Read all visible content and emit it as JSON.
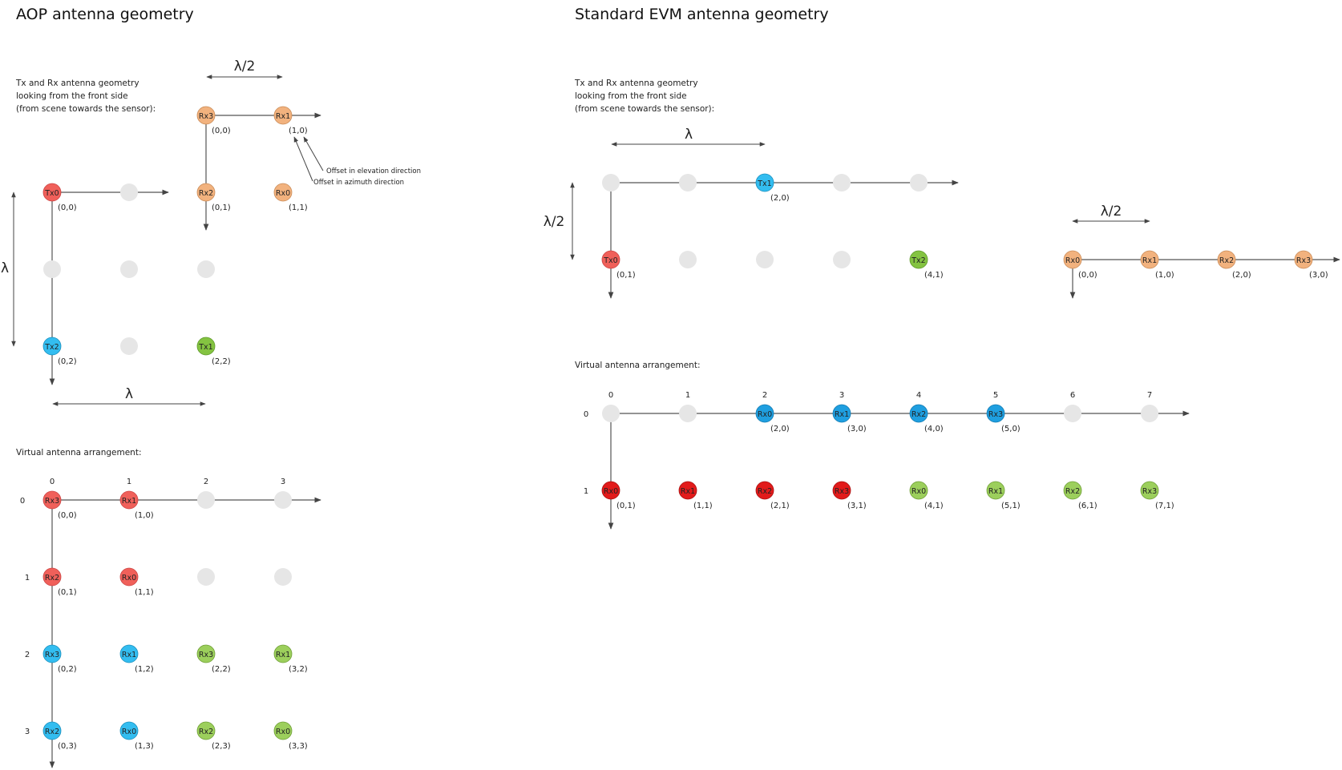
{
  "colors": {
    "tx_red": "#f0605a",
    "tx_blue": "#33bdf0",
    "tx_green": "#84c341",
    "rx_orange": "#f2b27e",
    "red_dark": "#e21b1b",
    "blue_dark": "#1f9fe0",
    "green_light": "#9ccf5c",
    "empty": "#e6e6e6",
    "line": "#555555"
  },
  "aop": {
    "title": "AOP antenna geometry",
    "note": [
      "Tx and Rx antenna geometry",
      "looking from the front side",
      "(from scene towards the sensor):"
    ],
    "lambda": "λ",
    "lambda_half": "λ/2",
    "offset_elev": "Offset in elevation direction",
    "offset_azim": "Offset in azimuth direction",
    "tx": [
      {
        "label": "Tx0",
        "coord": "(0,0)"
      },
      {
        "label": "Tx2",
        "coord": "(0,2)"
      },
      {
        "label": "Tx1",
        "coord": "(2,2)"
      }
    ],
    "rx": [
      {
        "label": "Rx3",
        "coord": "(0,0)"
      },
      {
        "label": "Rx1",
        "coord": "(1,0)"
      },
      {
        "label": "Rx2",
        "coord": "(0,1)"
      },
      {
        "label": "Rx0",
        "coord": "(1,1)"
      }
    ],
    "virtual_title": "Virtual antenna arrangement:",
    "col_idx": [
      "0",
      "1",
      "2",
      "3"
    ],
    "row_idx": [
      "0",
      "1",
      "2",
      "3"
    ],
    "virtual": [
      {
        "label": "Rx3",
        "coord": "(0,0)"
      },
      {
        "label": "Rx1",
        "coord": "(1,0)"
      },
      {
        "label": "Rx2",
        "coord": "(0,1)"
      },
      {
        "label": "Rx0",
        "coord": "(1,1)"
      },
      {
        "label": "Rx3",
        "coord": "(0,2)"
      },
      {
        "label": "Rx1",
        "coord": "(1,2)"
      },
      {
        "label": "Rx3",
        "coord": "(2,2)"
      },
      {
        "label": "Rx1",
        "coord": "(3,2)"
      },
      {
        "label": "Rx2",
        "coord": "(0,3)"
      },
      {
        "label": "Rx0",
        "coord": "(1,3)"
      },
      {
        "label": "Rx2",
        "coord": "(2,3)"
      },
      {
        "label": "Rx0",
        "coord": "(3,3)"
      }
    ]
  },
  "evm": {
    "title": "Standard EVM  antenna geometry",
    "note": [
      "Tx and Rx antenna geometry",
      "looking from the front side",
      "(from scene towards the sensor):"
    ],
    "lambda": "λ",
    "lambda_half": "λ/2",
    "tx": [
      {
        "label": "Tx1",
        "coord": "(2,0)"
      },
      {
        "label": "Tx0",
        "coord": "(0,1)"
      },
      {
        "label": "Tx2",
        "coord": "(4,1)"
      }
    ],
    "rx": [
      {
        "label": "Rx0",
        "coord": "(0,0)"
      },
      {
        "label": "Rx1",
        "coord": "(1,0)"
      },
      {
        "label": "Rx2",
        "coord": "(2,0)"
      },
      {
        "label": "Rx3",
        "coord": "(3,0)"
      }
    ],
    "virtual_title": "Virtual antenna arrangement:",
    "col_idx": [
      "0",
      "1",
      "2",
      "3",
      "4",
      "5",
      "6",
      "7"
    ],
    "row_idx": [
      "0",
      "1"
    ],
    "virtual": [
      {
        "label": "Rx0",
        "coord": "(2,0)"
      },
      {
        "label": "Rx1",
        "coord": "(3,0)"
      },
      {
        "label": "Rx2",
        "coord": "(4,0)"
      },
      {
        "label": "Rx3",
        "coord": "(5,0)"
      },
      {
        "label": "Rx0",
        "coord": "(0,1)"
      },
      {
        "label": "Rx1",
        "coord": "(1,1)"
      },
      {
        "label": "Rx2",
        "coord": "(2,1)"
      },
      {
        "label": "Rx3",
        "coord": "(3,1)"
      },
      {
        "label": "Rx0",
        "coord": "(4,1)"
      },
      {
        "label": "Rx1",
        "coord": "(5,1)"
      },
      {
        "label": "Rx2",
        "coord": "(6,1)"
      },
      {
        "label": "Rx3",
        "coord": "(7,1)"
      }
    ]
  }
}
